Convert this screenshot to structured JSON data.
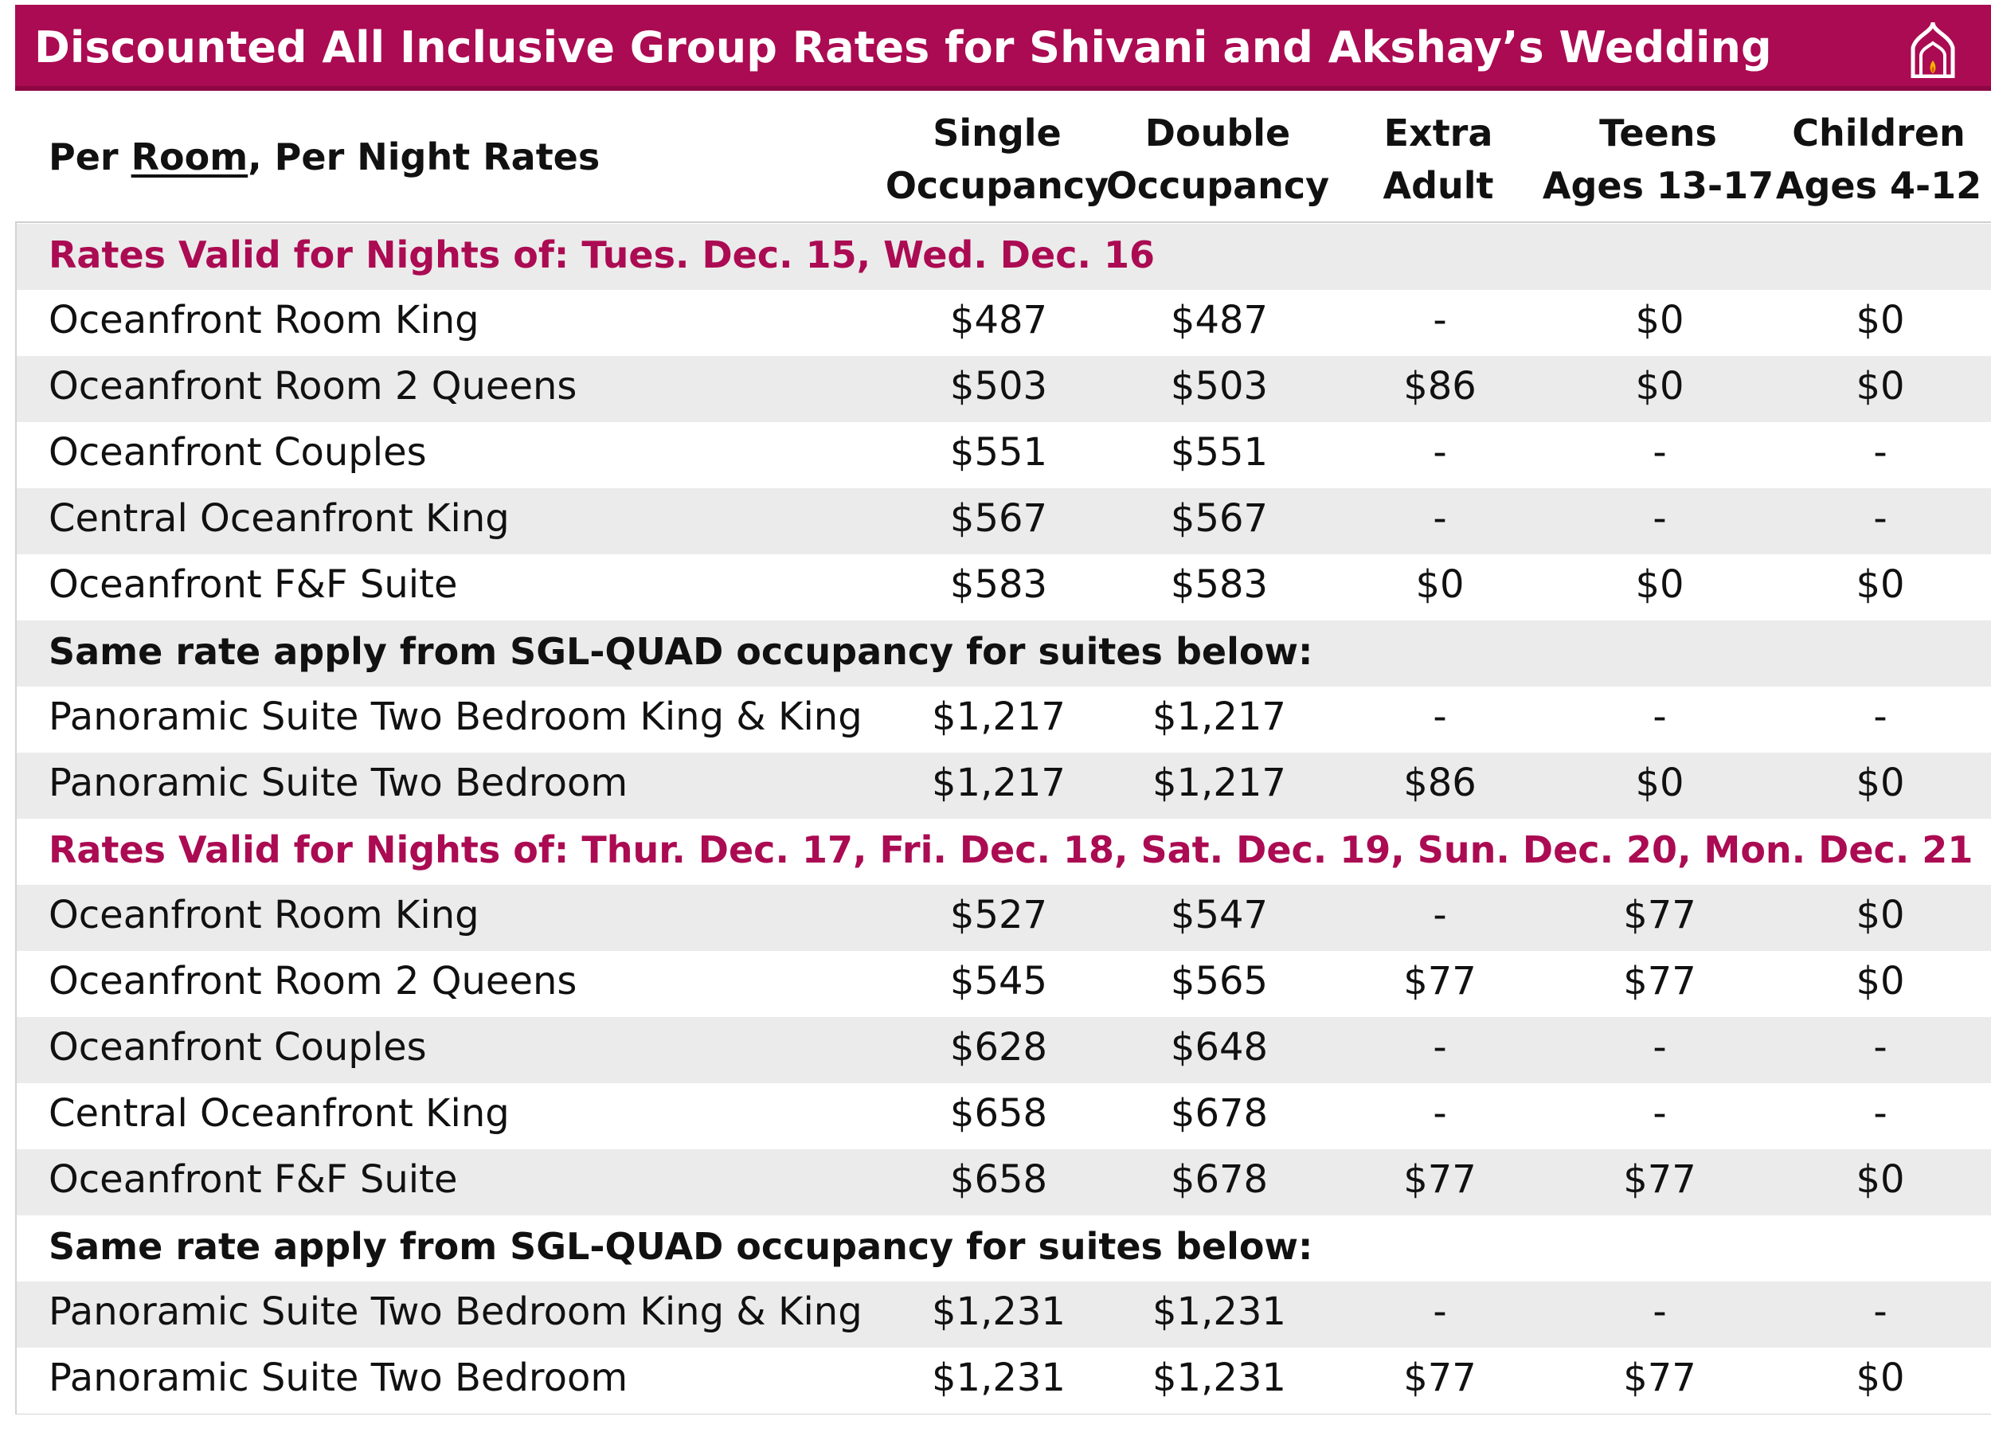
{
  "title": "Discounted All Inclusive Group Rates for Shivani and Akshay’s Wedding",
  "logo_icon": "palace-dome-icon",
  "colors": {
    "accent": "#ab0b52",
    "row_alt": "#ebebeb"
  },
  "header": {
    "label_prefix": "Per ",
    "label_underlined": "Room",
    "label_suffix": ", Per Night Rates",
    "columns": [
      {
        "line1": "Single",
        "line2": "Occupancy"
      },
      {
        "line1": "Double",
        "line2": "Occupancy"
      },
      {
        "line1": "Extra",
        "line2": "Adult"
      },
      {
        "line1": "Teens",
        "line2": "Ages 13-17"
      },
      {
        "line1": "Children",
        "line2": "Ages 4-12"
      }
    ]
  },
  "rows": [
    {
      "kind": "section",
      "label": "Rates Valid for Nights of: Tues. Dec. 15, Wed. Dec. 16"
    },
    {
      "kind": "data",
      "label": "Oceanfront Room King",
      "values": [
        "$487",
        "$487",
        "-",
        "$0",
        "$0"
      ]
    },
    {
      "kind": "data",
      "label": "Oceanfront Room 2 Queens",
      "values": [
        "$503",
        "$503",
        "$86",
        "$0",
        "$0"
      ]
    },
    {
      "kind": "data",
      "label": "Oceanfront Couples",
      "values": [
        "$551",
        "$551",
        "-",
        "-",
        "-"
      ]
    },
    {
      "kind": "data",
      "label": "Central Oceanfront King",
      "values": [
        "$567",
        "$567",
        "-",
        "-",
        "-"
      ]
    },
    {
      "kind": "data",
      "label": "Oceanfront F&F Suite",
      "values": [
        "$583",
        "$583",
        "$0",
        "$0",
        "$0"
      ]
    },
    {
      "kind": "note",
      "label": "Same rate apply from SGL-QUAD occupancy for suites below:"
    },
    {
      "kind": "data",
      "label": "Panoramic Suite Two Bedroom King & King",
      "values": [
        "$1,217",
        "$1,217",
        "-",
        "-",
        "-"
      ]
    },
    {
      "kind": "data",
      "label": "Panoramic Suite Two Bedroom",
      "values": [
        "$1,217",
        "$1,217",
        "$86",
        "$0",
        "$0"
      ]
    },
    {
      "kind": "section",
      "label": "Rates Valid for Nights of: Thur. Dec. 17, Fri. Dec. 18, Sat. Dec. 19, Sun. Dec. 20, Mon. Dec. 21"
    },
    {
      "kind": "data",
      "label": "Oceanfront Room King",
      "values": [
        "$527",
        "$547",
        "-",
        "$77",
        "$0"
      ]
    },
    {
      "kind": "data",
      "label": "Oceanfront Room 2 Queens",
      "values": [
        "$545",
        "$565",
        "$77",
        "$77",
        "$0"
      ]
    },
    {
      "kind": "data",
      "label": "Oceanfront Couples",
      "values": [
        "$628",
        "$648",
        "-",
        "-",
        "-"
      ]
    },
    {
      "kind": "data",
      "label": "Central Oceanfront King",
      "values": [
        "$658",
        "$678",
        "-",
        "-",
        "-"
      ]
    },
    {
      "kind": "data",
      "label": "Oceanfront F&F Suite",
      "values": [
        "$658",
        "$678",
        "$77",
        "$77",
        "$0"
      ]
    },
    {
      "kind": "note",
      "label": "Same rate apply from SGL-QUAD occupancy for suites below:"
    },
    {
      "kind": "data",
      "label": "Panoramic Suite Two Bedroom King & King",
      "values": [
        "$1,231",
        "$1,231",
        "-",
        "-",
        "-"
      ]
    },
    {
      "kind": "data",
      "label": "Panoramic Suite Two Bedroom",
      "values": [
        "$1,231",
        "$1,231",
        "$77",
        "$77",
        "$0"
      ]
    }
  ]
}
